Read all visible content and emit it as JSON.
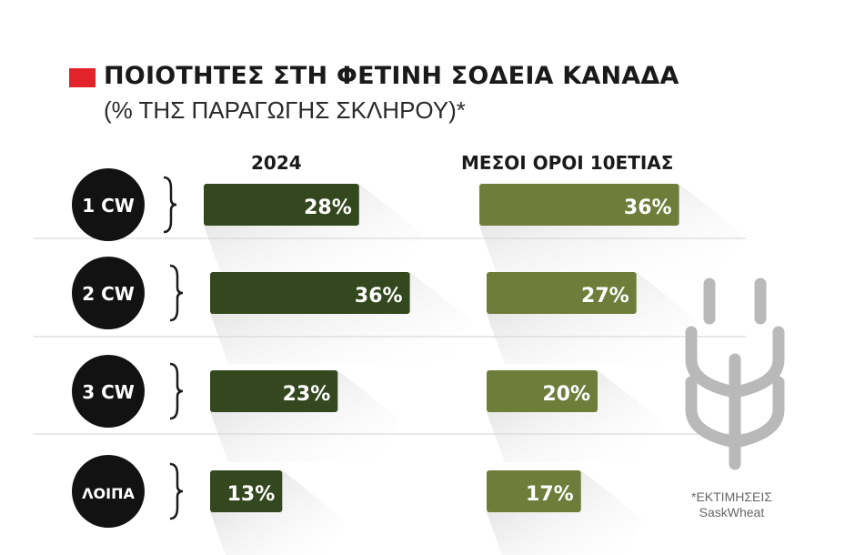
{
  "header": {
    "title": "ΠΟΙΟΤΗΤΕΣ ΣΤΗ ΦΕΤΙΝΗ ΣΟΔΕΙΑ ΚΑΝΑΔΑ",
    "subtitle": "(% ΤΗΣ ΠΑΡΑΓΩΓΗΣ ΣΚΛΗΡΟΥ)*",
    "accent_color": "#e3232a"
  },
  "footnote": {
    "line1": "*ΕΚΤΙΜΗΣΕΙΣ",
    "line2": "SaskWheat"
  },
  "decor": {
    "icon": "wheat-icon",
    "icon_color": "#b9b9b9"
  },
  "chart_data": {
    "type": "bar",
    "orientation": "horizontal",
    "categories": [
      "1 CW",
      "2 CW",
      "3 CW",
      "ΛΟΙΠΑ"
    ],
    "series": [
      {
        "name": "2024",
        "values": [
          28,
          36,
          23,
          13
        ],
        "labels": [
          "28%",
          "36%",
          "23%",
          "13%"
        ],
        "color": "#34481f"
      },
      {
        "name": "ΜΕΣΟΙ ΟΡΟΙ 10ΕΤΙΑΣ",
        "values": [
          36,
          27,
          20,
          17
        ],
        "labels": [
          "36%",
          "27%",
          "20%",
          "17%"
        ],
        "color": "#6e7d3a"
      }
    ],
    "unit": "%"
  }
}
